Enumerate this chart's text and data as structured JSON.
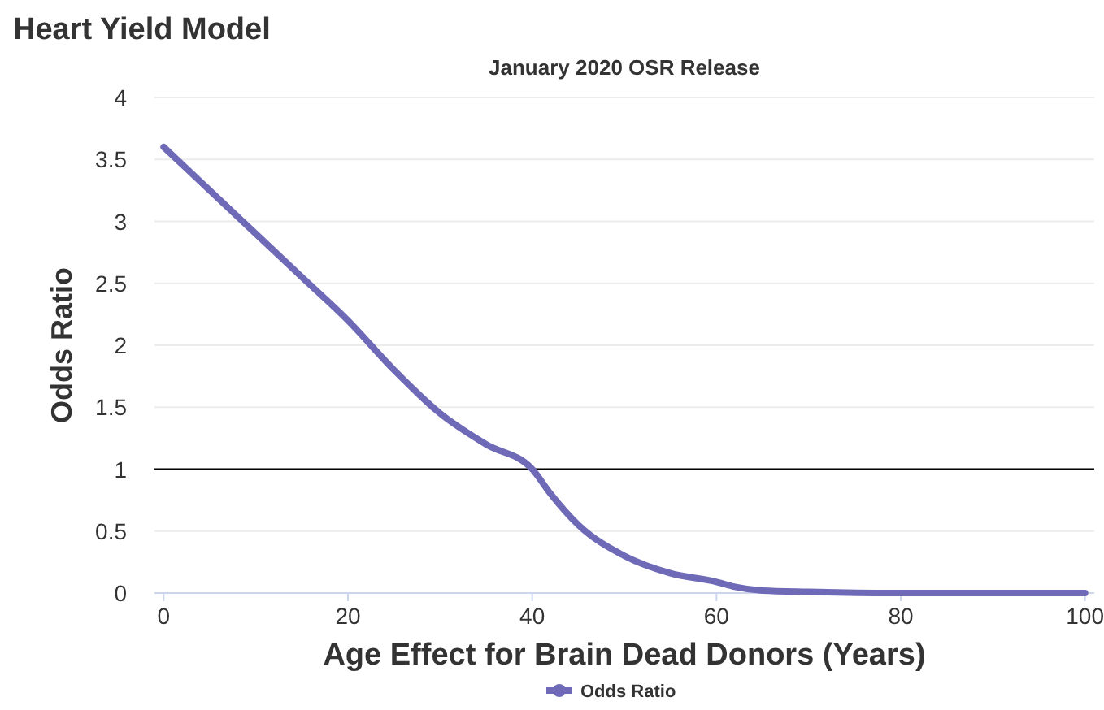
{
  "chart_data": {
    "type": "line",
    "title": "Heart Yield Model",
    "subtitle": "January 2020 OSR Release",
    "xlabel": "Age Effect for Brain Dead Donors (Years)",
    "ylabel": "Odds Ratio",
    "x": [
      0,
      5,
      10,
      15,
      20,
      25,
      30,
      35,
      40,
      42,
      45,
      50,
      55,
      60,
      62,
      65,
      70,
      80,
      90,
      100
    ],
    "series": [
      {
        "name": "Odds Ratio",
        "color": "#6e6ab8",
        "values": [
          3.6,
          3.25,
          2.9,
          2.55,
          2.2,
          1.8,
          1.45,
          1.2,
          1.0,
          0.8,
          0.55,
          0.3,
          0.16,
          0.09,
          0.05,
          0.02,
          0.01,
          0,
          0,
          0
        ]
      }
    ],
    "xlim": [
      -1,
      101
    ],
    "xticks": [
      0,
      20,
      40,
      60,
      80,
      100
    ],
    "ylim": [
      0,
      4
    ],
    "yticks": [
      0,
      0.5,
      1,
      1.5,
      2,
      2.5,
      3,
      3.5,
      4
    ],
    "ref_lines": [
      {
        "axis": "y",
        "value": 1,
        "color": "#000000"
      }
    ],
    "grid": "y",
    "legend": "bottom",
    "marker": "none",
    "line_style": "solid"
  }
}
